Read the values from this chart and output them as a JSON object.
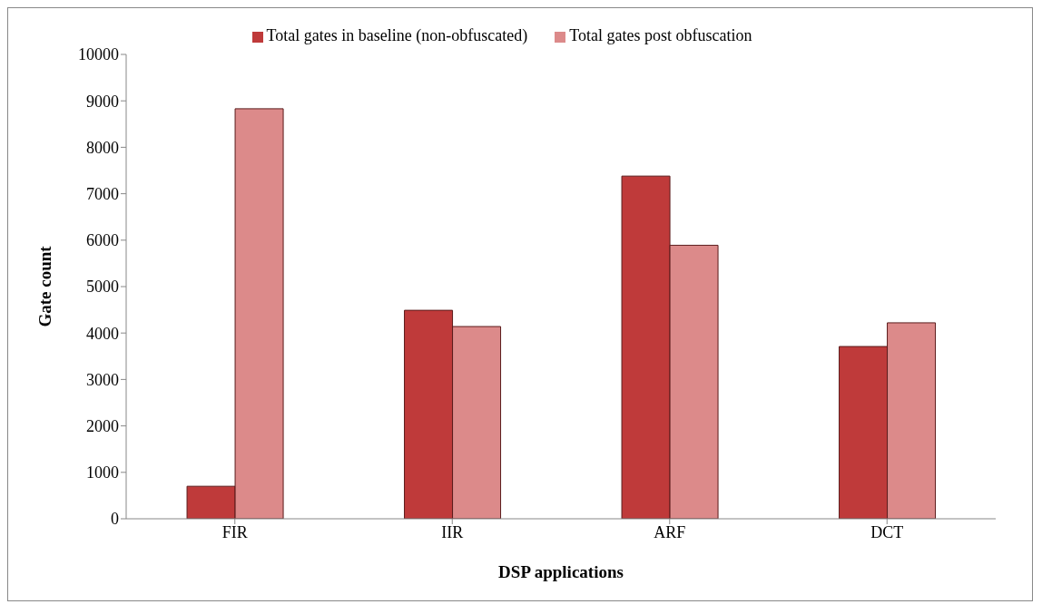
{
  "chart_data": {
    "type": "bar",
    "xlabel": "DSP applications",
    "ylabel": "Gate count",
    "categories": [
      "FIR",
      "IIR",
      "ARF",
      "DCT"
    ],
    "series": [
      {
        "name": "Total gates in baseline  (non-obfuscated)",
        "color": "#bf3a3a",
        "values": [
          700,
          4490,
          7380,
          3710
        ]
      },
      {
        "name": "Total gates post obfuscation",
        "color": "#dc8a8a",
        "values": [
          8830,
          4140,
          5890,
          4220
        ]
      }
    ],
    "ylim": [
      0,
      10000
    ],
    "yticks": [
      0,
      1000,
      2000,
      3000,
      4000,
      5000,
      6000,
      7000,
      8000,
      9000,
      10000
    ],
    "grid": false,
    "legend": "top"
  }
}
